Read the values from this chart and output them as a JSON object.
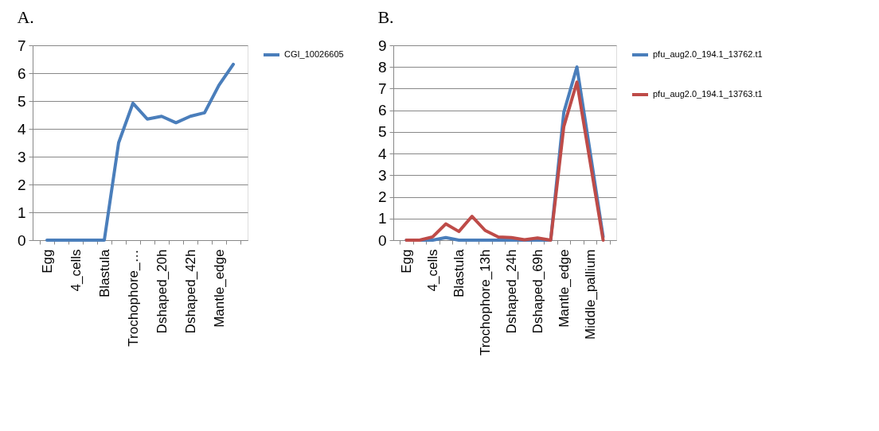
{
  "chart_data": [
    {
      "type": "line",
      "title": "A.",
      "categories": [
        "Egg",
        null,
        "4_cells",
        null,
        "Blastula",
        null,
        "Trochophore_…",
        null,
        "Dshaped_20h",
        null,
        "Dshaped_42h",
        null,
        "Mantle_edge",
        null
      ],
      "series": [
        {
          "name": "CGI_10026605",
          "color": "#4a7ebb",
          "values": [
            0,
            0,
            0,
            0,
            0,
            3.5,
            4.92,
            4.35,
            4.45,
            4.22,
            4.45,
            4.58,
            5.57,
            6.32
          ]
        }
      ],
      "ylim": [
        0,
        7
      ],
      "yticks": [
        0,
        1,
        2,
        3,
        4,
        5,
        6,
        7
      ],
      "grid": "y",
      "legend": "right",
      "marker": "none",
      "line_style": "solid"
    },
    {
      "type": "line",
      "title": "B.",
      "categories": [
        "Egg",
        null,
        "4_cells",
        null,
        "Blastula",
        null,
        "Trochophore_13h",
        null,
        "Dshaped_24h",
        null,
        "Dshaped_69h",
        null,
        "Mantle_edge",
        null,
        "Middle_pallium",
        null
      ],
      "series": [
        {
          "name": "pfu_aug2.0_194.1_13762.t1",
          "color": "#4a7ebb",
          "values": [
            0,
            0,
            0,
            0.12,
            0,
            0,
            0,
            0,
            0,
            0,
            0,
            0,
            5.9,
            8.0,
            4.1,
            0.15
          ]
        },
        {
          "name": "pfu_aug2.0_194.1_13763.t1",
          "color": "#be4b48",
          "values": [
            0,
            0,
            0.15,
            0.75,
            0.4,
            1.1,
            0.45,
            0.15,
            0.12,
            0.02,
            0.1,
            0,
            5.25,
            7.3,
            3.65,
            0
          ]
        }
      ],
      "ylim": [
        0,
        9
      ],
      "yticks": [
        0,
        1,
        2,
        3,
        4,
        5,
        6,
        7,
        8,
        9
      ],
      "grid": "y",
      "legend": "right",
      "marker": "none",
      "line_style": "solid"
    }
  ]
}
